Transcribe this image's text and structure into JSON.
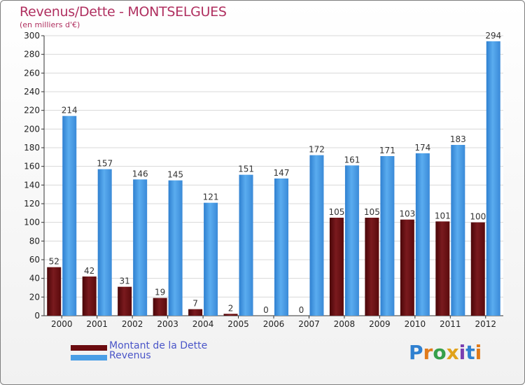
{
  "header": {
    "title": "Revenus/Dette - MONTSELGUES",
    "subtitle": "(en milliers d'€)"
  },
  "legend": {
    "items": [
      {
        "label": "Montant de la Dette",
        "color": "#6b0c10"
      },
      {
        "label": "Revenus",
        "color": "#4a9ee6"
      }
    ]
  },
  "brand": {
    "text": "Proxiti",
    "letters": [
      {
        "ch": "P",
        "color": "#2f80d0"
      },
      {
        "ch": "r",
        "color": "#e07a1a"
      },
      {
        "ch": "o",
        "color": "#36a04a"
      },
      {
        "ch": "x",
        "color": "#e0a21a"
      },
      {
        "ch": "i",
        "color": "#7a3fb0"
      },
      {
        "ch": "t",
        "color": "#2f80d0"
      },
      {
        "ch": "i",
        "color": "#e07a1a"
      }
    ]
  },
  "chart_data": {
    "type": "bar",
    "categories": [
      "2000",
      "2001",
      "2002",
      "2003",
      "2004",
      "2005",
      "2006",
      "2007",
      "2008",
      "2009",
      "2010",
      "2011",
      "2012"
    ],
    "series": [
      {
        "name": "Montant de la Dette",
        "color": "#6b0c10",
        "values": [
          52,
          42,
          31,
          19,
          7,
          2,
          0,
          0,
          105,
          105,
          103,
          101,
          100
        ]
      },
      {
        "name": "Revenus",
        "color": "#4a9ee6",
        "values": [
          214,
          157,
          146,
          145,
          121,
          151,
          147,
          172,
          161,
          171,
          174,
          183,
          294
        ]
      }
    ],
    "ylim": [
      0,
      300
    ],
    "yticks": [
      0,
      20,
      40,
      60,
      80,
      100,
      120,
      140,
      160,
      180,
      200,
      220,
      240,
      260,
      280,
      300
    ],
    "grid": true,
    "legend_position": "bottom-left"
  }
}
